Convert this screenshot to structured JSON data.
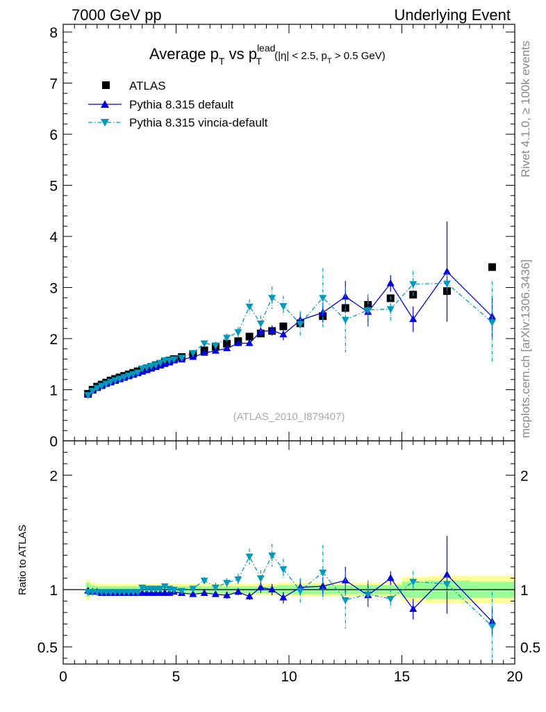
{
  "header": {
    "left": "7000 GeV pp",
    "right": "Underlying Event"
  },
  "side_labels": {
    "upper": "Rivet 4.1.0, ≥ 100k events",
    "lower": "mcplots.cern.ch [arXiv:1306.3436]"
  },
  "watermark": "(ATLAS_2010_I879407)",
  "title_parts": {
    "prefix": "Average p",
    "sub_t": "T",
    "vs": " vs p",
    "sup_lead": "lead",
    "sub_t2": "T",
    "cut_open": " (|η| < 2.5, p",
    "cut_sub": "T",
    "cut_close": " > 0.5 GeV)"
  },
  "ratio_ylabel": "Ratio to ATLAS",
  "colors": {
    "data": "#000000",
    "default": "#0000dd",
    "vincia": "#0099bb",
    "band_yellow": "#ffff99",
    "band_green": "#99ff99"
  },
  "chart_data": [
    {
      "type": "scatter",
      "panel": "main",
      "title": "Average pT vs pT lead (|η| < 2.5, pT > 0.5 GeV)",
      "xlabel": "",
      "ylabel": "",
      "xlim": [
        0,
        20
      ],
      "ylim": [
        0,
        8.15
      ],
      "xticks": [
        0,
        5,
        10,
        15,
        20
      ],
      "yticks": [
        0,
        1,
        2,
        3,
        4,
        5,
        6,
        7,
        8
      ],
      "legend_position": "top-left",
      "series": [
        {
          "name": "ATLAS",
          "marker": "square",
          "x": [
            1.1,
            1.3,
            1.5,
            1.7,
            1.9,
            2.1,
            2.3,
            2.5,
            2.7,
            2.9,
            3.1,
            3.3,
            3.5,
            3.7,
            3.9,
            4.1,
            4.3,
            4.5,
            4.7,
            4.9,
            5.25,
            5.75,
            6.25,
            6.75,
            7.25,
            7.75,
            8.25,
            8.75,
            9.25,
            9.75,
            10.5,
            11.5,
            12.5,
            13.5,
            14.5,
            15.5,
            17,
            19
          ],
          "y": [
            0.92,
            1.0,
            1.06,
            1.1,
            1.14,
            1.18,
            1.21,
            1.24,
            1.27,
            1.3,
            1.33,
            1.36,
            1.39,
            1.42,
            1.45,
            1.48,
            1.51,
            1.54,
            1.57,
            1.6,
            1.64,
            1.7,
            1.77,
            1.84,
            1.9,
            1.95,
            2.04,
            2.1,
            2.15,
            2.24,
            2.3,
            2.44,
            2.6,
            2.66,
            2.79,
            2.86,
            2.93,
            3.4
          ]
        },
        {
          "name": "Pythia 8.315 default",
          "marker": "triangle-up",
          "line": "solid",
          "x": [
            1.1,
            1.3,
            1.5,
            1.7,
            1.9,
            2.1,
            2.3,
            2.5,
            2.7,
            2.9,
            3.1,
            3.3,
            3.5,
            3.7,
            3.9,
            4.1,
            4.3,
            4.5,
            4.7,
            4.9,
            5.25,
            5.75,
            6.25,
            6.75,
            7.25,
            7.75,
            8.25,
            8.75,
            9.25,
            9.75,
            10.5,
            11.5,
            12.5,
            13.5,
            14.5,
            15.5,
            17,
            19
          ],
          "y": [
            0.91,
            0.98,
            1.03,
            1.07,
            1.11,
            1.14,
            1.17,
            1.2,
            1.23,
            1.26,
            1.29,
            1.32,
            1.35,
            1.38,
            1.41,
            1.44,
            1.47,
            1.5,
            1.53,
            1.57,
            1.59,
            1.64,
            1.72,
            1.76,
            1.81,
            1.91,
            1.91,
            2.14,
            2.16,
            2.08,
            2.36,
            2.51,
            2.82,
            2.52,
            3.08,
            2.38,
            3.31,
            2.43
          ],
          "yerr": [
            0.01,
            0.01,
            0.01,
            0.01,
            0.01,
            0.01,
            0.01,
            0.01,
            0.01,
            0.01,
            0.01,
            0.01,
            0.01,
            0.01,
            0.01,
            0.01,
            0.01,
            0.01,
            0.02,
            0.02,
            0.02,
            0.03,
            0.03,
            0.04,
            0.05,
            0.06,
            0.06,
            0.09,
            0.1,
            0.11,
            0.15,
            0.2,
            0.31,
            0.28,
            0.16,
            0.25,
            0.98,
            0.4
          ]
        },
        {
          "name": "Pythia 8.315 vincia-default",
          "marker": "triangle-down",
          "line": "dashdot",
          "x": [
            1.1,
            1.3,
            1.5,
            1.7,
            1.9,
            2.1,
            2.3,
            2.5,
            2.7,
            2.9,
            3.1,
            3.3,
            3.5,
            3.7,
            3.9,
            4.1,
            4.3,
            4.5,
            4.7,
            4.9,
            5.25,
            5.75,
            6.25,
            6.75,
            7.25,
            7.75,
            8.25,
            8.75,
            9.25,
            9.75,
            10.5,
            11.5,
            12.5,
            13.5,
            14.5,
            15.5,
            17,
            19
          ],
          "y": [
            0.9,
            0.98,
            1.04,
            1.08,
            1.12,
            1.16,
            1.19,
            1.22,
            1.25,
            1.28,
            1.31,
            1.34,
            1.42,
            1.44,
            1.47,
            1.49,
            1.53,
            1.58,
            1.58,
            1.6,
            1.63,
            1.72,
            1.91,
            1.87,
            2.02,
            2.13,
            2.63,
            2.3,
            2.8,
            2.64,
            2.29,
            2.8,
            2.37,
            2.56,
            2.58,
            3.07,
            3.08,
            2.32
          ],
          "yerr": [
            0.01,
            0.01,
            0.01,
            0.01,
            0.01,
            0.01,
            0.01,
            0.01,
            0.01,
            0.01,
            0.01,
            0.01,
            0.02,
            0.02,
            0.02,
            0.02,
            0.02,
            0.03,
            0.03,
            0.03,
            0.03,
            0.04,
            0.06,
            0.07,
            0.08,
            0.1,
            0.14,
            0.15,
            0.22,
            0.2,
            0.25,
            0.58,
            0.64,
            0.31,
            0.25,
            0.25,
            0.2,
            0.8
          ]
        }
      ]
    },
    {
      "type": "scatter",
      "panel": "ratio",
      "xlabel": "",
      "ylabel": "Ratio to ATLAS",
      "xlim": [
        0,
        20
      ],
      "ylim": [
        0.35,
        2.3
      ],
      "xticks": [
        0,
        5,
        10,
        15,
        20
      ],
      "yticks": [
        0.5,
        1,
        2
      ],
      "reference": 1,
      "series": [
        {
          "name": "Pythia 8.315 default",
          "x": [
            1.1,
            1.3,
            1.5,
            1.7,
            1.9,
            2.1,
            2.3,
            2.5,
            2.7,
            2.9,
            3.1,
            3.3,
            3.5,
            3.7,
            3.9,
            4.1,
            4.3,
            4.5,
            4.7,
            4.9,
            5.25,
            5.75,
            6.25,
            6.75,
            7.25,
            7.75,
            8.25,
            8.75,
            9.25,
            9.75,
            10.5,
            11.5,
            12.5,
            13.5,
            14.5,
            15.5,
            17,
            19
          ],
          "y": [
            0.99,
            0.98,
            0.98,
            0.97,
            0.97,
            0.97,
            0.97,
            0.97,
            0.97,
            0.97,
            0.97,
            0.97,
            0.97,
            0.97,
            0.97,
            0.97,
            0.97,
            0.97,
            0.97,
            0.98,
            0.97,
            0.96,
            0.97,
            0.96,
            0.95,
            0.98,
            0.94,
            1.02,
            1.0,
            0.93,
            1.02,
            1.03,
            1.08,
            0.95,
            1.1,
            0.83,
            1.13,
            0.72
          ],
          "yerr": [
            0.01,
            0.01,
            0.01,
            0.01,
            0.01,
            0.01,
            0.01,
            0.01,
            0.01,
            0.01,
            0.01,
            0.01,
            0.01,
            0.01,
            0.01,
            0.01,
            0.01,
            0.01,
            0.01,
            0.01,
            0.01,
            0.02,
            0.02,
            0.02,
            0.03,
            0.03,
            0.03,
            0.05,
            0.05,
            0.05,
            0.07,
            0.08,
            0.12,
            0.1,
            0.06,
            0.09,
            0.34,
            0.12
          ]
        },
        {
          "name": "Pythia 8.315 vincia-default",
          "x": [
            1.1,
            1.3,
            1.5,
            1.7,
            1.9,
            2.1,
            2.3,
            2.5,
            2.7,
            2.9,
            3.1,
            3.3,
            3.5,
            3.7,
            3.9,
            4.1,
            4.3,
            4.5,
            4.7,
            4.9,
            5.25,
            5.75,
            6.25,
            6.75,
            7.25,
            7.75,
            8.25,
            8.75,
            9.25,
            9.75,
            10.5,
            11.5,
            12.5,
            13.5,
            14.5,
            15.5,
            17,
            19
          ],
          "y": [
            0.98,
            0.98,
            0.98,
            0.98,
            0.98,
            0.98,
            0.98,
            0.98,
            0.98,
            0.98,
            0.98,
            0.98,
            1.02,
            1.01,
            1.01,
            1.01,
            1.01,
            1.03,
            1.01,
            1.0,
            0.99,
            1.01,
            1.08,
            1.02,
            1.06,
            1.09,
            1.29,
            1.1,
            1.3,
            1.18,
            0.99,
            1.15,
            0.91,
            0.96,
            0.92,
            1.07,
            1.05,
            0.68
          ],
          "yerr": [
            0.01,
            0.01,
            0.01,
            0.01,
            0.01,
            0.01,
            0.01,
            0.01,
            0.01,
            0.01,
            0.01,
            0.01,
            0.01,
            0.01,
            0.01,
            0.01,
            0.01,
            0.02,
            0.02,
            0.02,
            0.02,
            0.02,
            0.03,
            0.04,
            0.04,
            0.05,
            0.07,
            0.07,
            0.1,
            0.09,
            0.11,
            0.24,
            0.25,
            0.12,
            0.09,
            0.09,
            0.07,
            0.3
          ]
        }
      ],
      "bands": {
        "edges": [
          1.0,
          1.2,
          1.4,
          1.6,
          1.8,
          2.0,
          2.2,
          2.4,
          2.6,
          2.8,
          3.0,
          3.2,
          3.4,
          3.6,
          3.8,
          4.0,
          4.2,
          4.4,
          4.6,
          4.8,
          5.0,
          5.5,
          6.0,
          6.5,
          7.0,
          7.5,
          8.0,
          8.5,
          9.0,
          9.5,
          10.0,
          11.0,
          12.0,
          13.0,
          14.0,
          15.0,
          16.0,
          18.0,
          20.0
        ],
        "green_halfwidth": [
          0.06,
          0.04,
          0.03,
          0.03,
          0.03,
          0.03,
          0.03,
          0.03,
          0.03,
          0.03,
          0.03,
          0.03,
          0.03,
          0.03,
          0.03,
          0.03,
          0.03,
          0.03,
          0.03,
          0.03,
          0.03,
          0.03,
          0.03,
          0.03,
          0.03,
          0.03,
          0.03,
          0.03,
          0.03,
          0.04,
          0.04,
          0.04,
          0.04,
          0.04,
          0.04,
          0.07,
          0.08,
          0.07
        ],
        "yellow_halfwidth": [
          0.09,
          0.06,
          0.05,
          0.05,
          0.05,
          0.05,
          0.05,
          0.05,
          0.05,
          0.05,
          0.05,
          0.05,
          0.05,
          0.05,
          0.05,
          0.05,
          0.05,
          0.05,
          0.05,
          0.05,
          0.05,
          0.05,
          0.05,
          0.05,
          0.05,
          0.05,
          0.05,
          0.05,
          0.05,
          0.06,
          0.06,
          0.06,
          0.06,
          0.06,
          0.06,
          0.11,
          0.12,
          0.12
        ]
      }
    }
  ]
}
